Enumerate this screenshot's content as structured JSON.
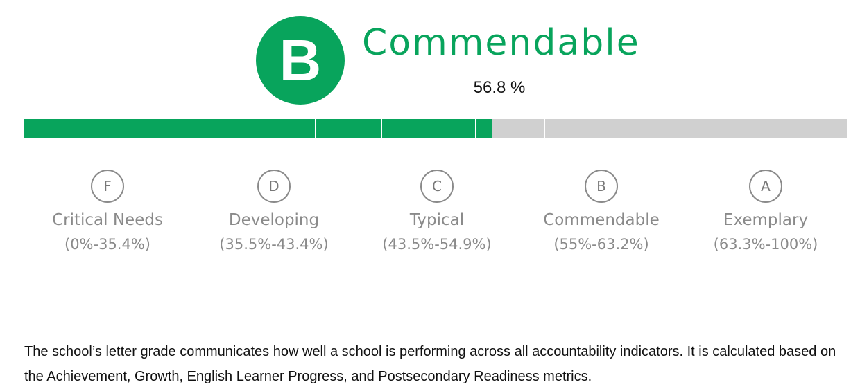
{
  "grade": {
    "letter": "B",
    "label": "Commendable",
    "percent_text": "56.8 %",
    "percent_value": 56.8,
    "color": "#08a45c"
  },
  "progress_bar": {
    "fill_color": "#08a45c",
    "track_color": "#d0d0d0",
    "fill_percent": 56.8,
    "divider_percents": [
      35.4,
      43.4,
      54.9,
      63.2
    ]
  },
  "scale": [
    {
      "letter": "F",
      "name": "Critical Needs",
      "range": "(0%-35.4%)"
    },
    {
      "letter": "D",
      "name": "Developing",
      "range": "(35.5%-43.4%)"
    },
    {
      "letter": "C",
      "name": "Typical",
      "range": "(43.5%-54.9%)"
    },
    {
      "letter": "B",
      "name": "Commendable",
      "range": "(55%-63.2%)"
    },
    {
      "letter": "A",
      "name": "Exemplary",
      "range": "(63.3%-100%)"
    }
  ],
  "description": "The school’s letter grade communicates how well a school is performing across all accountability indicators. It is calculated based on the Achievement, Growth, English Learner Progress, and Postsecondary Readiness metrics."
}
